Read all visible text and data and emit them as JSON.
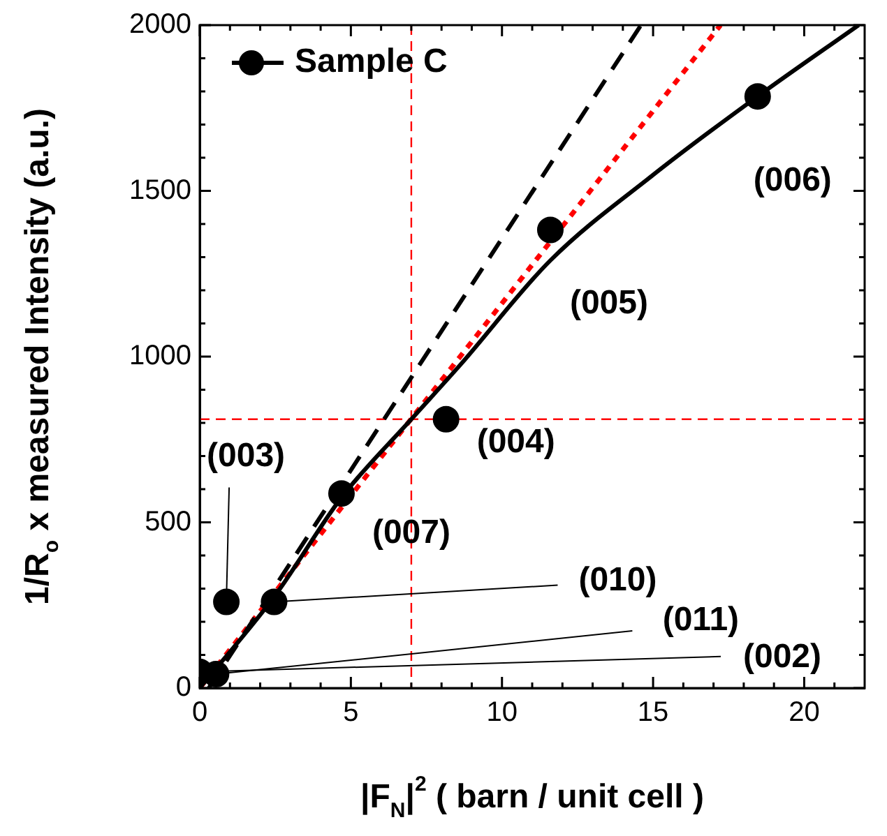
{
  "chart_data": {
    "type": "scatter",
    "xlabel": "|F$_{N}$|$^{2}$ ( barn / unit cell )",
    "ylabel": "1/R$_{o}$ x measured Intensity (a.u.)",
    "xlim": [
      0,
      22
    ],
    "ylim": [
      0,
      2000
    ],
    "xticks": [
      0,
      {
        "value": 1,
        "label": null
      },
      {
        "value": 2,
        "label": null
      },
      {
        "value": 3,
        "label": null
      },
      {
        "value": 4,
        "label": null
      },
      5,
      {
        "value": 6,
        "label": null
      },
      {
        "value": 7,
        "label": null
      },
      {
        "value": 8,
        "label": null
      },
      {
        "value": 9,
        "label": null
      },
      10,
      {
        "value": 11,
        "label": null
      },
      {
        "value": 12,
        "label": null
      },
      {
        "value": 13,
        "label": null
      },
      {
        "value": 14,
        "label": null
      },
      15,
      {
        "value": 16,
        "label": null
      },
      {
        "value": 17,
        "label": null
      },
      {
        "value": 18,
        "label": null
      },
      {
        "value": 19,
        "label": null
      },
      20,
      {
        "value": 21,
        "label": null
      }
    ],
    "yticks": [
      0,
      {
        "value": 100,
        "label": null
      },
      {
        "value": 200,
        "label": null
      },
      {
        "value": 300,
        "label": null
      },
      {
        "value": 400,
        "label": null
      },
      500,
      {
        "value": 600,
        "label": null
      },
      {
        "value": 700,
        "label": null
      },
      {
        "value": 800,
        "label": null
      },
      {
        "value": 900,
        "label": null
      },
      1000,
      {
        "value": 1100,
        "label": null
      },
      {
        "value": 1200,
        "label": null
      },
      {
        "value": 1300,
        "label": null
      },
      {
        "value": 1400,
        "label": null
      },
      1500,
      {
        "value": 1600,
        "label": null
      },
      {
        "value": 1700,
        "label": null
      },
      {
        "value": 1800,
        "label": null
      },
      {
        "value": 1900,
        "label": null
      },
      2000
    ],
    "legend": "top left",
    "series": [
      {
        "name": "Sample C",
        "type": "scatter",
        "marker": "circle",
        "color": "#000000",
        "x": [
          0,
          0.54,
          0.88,
          2.46,
          4.69,
          8.15,
          11.6,
          18.46
        ],
        "values": [
          49,
          42,
          260,
          260,
          587,
          811,
          1382,
          1785
        ]
      },
      {
        "type": "line",
        "marker": "none",
        "line_style": "solid",
        "color": "#000000",
        "x": [
          0,
          2.5,
          4.69,
          7,
          8.62,
          11.6,
          15,
          18.46,
          21.8
        ],
        "values": [
          0,
          280,
          575,
          811,
          975,
          1290,
          1548,
          1785,
          2000
        ]
      },
      {
        "type": "line",
        "marker": "none",
        "line_style": "dashed",
        "color": "#000000",
        "x": [
          0.3,
          14.6
        ],
        "values": [
          0,
          2000
        ]
      },
      {
        "type": "line",
        "marker": "none",
        "line_style": "dotted",
        "color": "#ff0000",
        "x": [
          0,
          17.23
        ],
        "values": [
          0,
          2000
        ]
      }
    ],
    "ref_lines": [
      {
        "axis": "x",
        "value": 7,
        "color": "#ff0000",
        "line_style": "dashed"
      },
      {
        "axis": "y",
        "value": 811,
        "color": "#ff0000",
        "line_style": "dashed"
      }
    ],
    "annotations": [
      {
        "text": "(002)",
        "x": 0,
        "y": 49
      },
      {
        "text": "(011)",
        "x": 0.54,
        "y": 42
      },
      {
        "text": "(003)",
        "x": 0.88,
        "y": 260
      },
      {
        "text": "(010)",
        "x": 2.46,
        "y": 260
      },
      {
        "text": "(007)",
        "x": 4.69,
        "y": 587
      },
      {
        "text": "(004)",
        "x": 8.15,
        "y": 811
      },
      {
        "text": "(005)",
        "x": 11.6,
        "y": 1382
      },
      {
        "text": "(006)",
        "x": 18.46,
        "y": 1785
      }
    ]
  }
}
